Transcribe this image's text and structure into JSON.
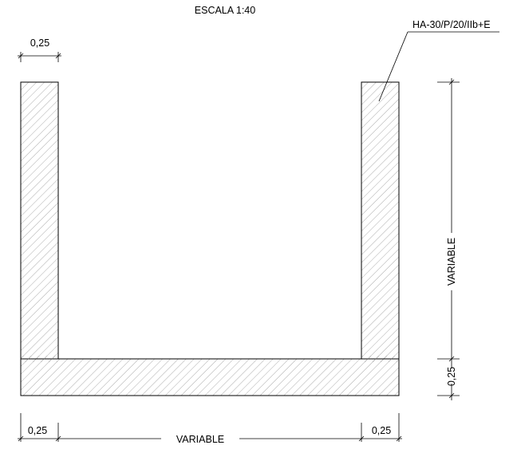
{
  "drawing": {
    "scale_label": "ESCALA 1:40",
    "material_label": "HA-30/P/20/IIb+E",
    "dims": {
      "top_left_wall": "0,25",
      "right_height": "VARIABLE",
      "right_base": "0,25",
      "bottom_left": "0,25",
      "bottom_span": "VARIABLE",
      "bottom_right": "0,25"
    },
    "colors": {
      "line": "#000000",
      "hatch": "#8a8a8a",
      "background": "#ffffff"
    }
  }
}
